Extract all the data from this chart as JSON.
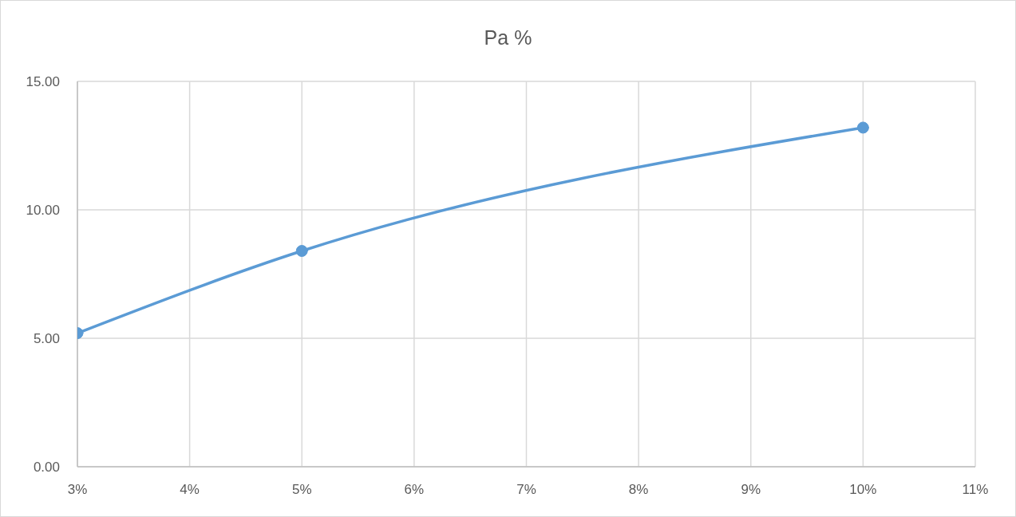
{
  "chart_data": {
    "type": "line",
    "title": "Pa %",
    "x": [
      3,
      5,
      10
    ],
    "values": [
      5.2,
      8.4,
      13.2
    ],
    "color": "#5b9bd5",
    "xlim": [
      3,
      11
    ],
    "xticks": [
      {
        "value": 3,
        "label": "3%"
      },
      {
        "value": 4,
        "label": "4%"
      },
      {
        "value": 5,
        "label": "5%"
      },
      {
        "value": 6,
        "label": "6%"
      },
      {
        "value": 7,
        "label": "7%"
      },
      {
        "value": 8,
        "label": "8%"
      },
      {
        "value": 9,
        "label": "9%"
      },
      {
        "value": 10,
        "label": "10%"
      },
      {
        "value": 11,
        "label": "11%"
      }
    ],
    "ylim": [
      0,
      15
    ],
    "yticks": [
      {
        "value": 0,
        "label": "0.00"
      },
      {
        "value": 5,
        "label": "5.00"
      },
      {
        "value": 10,
        "label": "10.00"
      },
      {
        "value": 15,
        "label": "15.00"
      }
    ],
    "grid": true,
    "marker": "circle",
    "line_style": "solid"
  }
}
